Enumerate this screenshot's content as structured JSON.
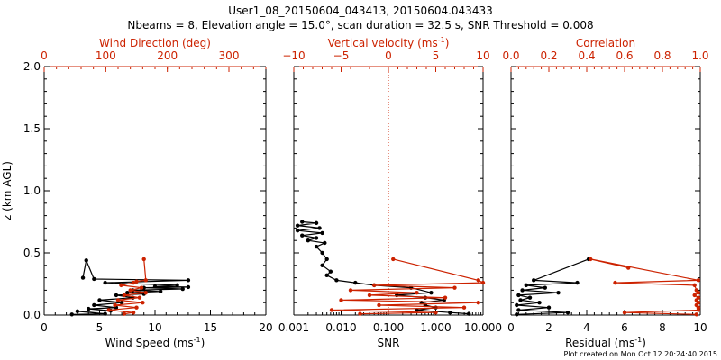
{
  "header": {
    "title": "User1_08_20150604_043413, 20150604.043433",
    "subtitle": "Nbeams = 8, Elevation angle = 15.0°, scan duration = 32.5 s, SNR Threshold = 0.008"
  },
  "footer": "Plot created on Mon Oct 12 20:24:40 2015",
  "colors": {
    "black": "#000000",
    "red": "#cc2200"
  },
  "chart_data": [
    {
      "id": "panel1",
      "type": "scatter",
      "ylabel": "z (km AGL)",
      "ylim": [
        0,
        2.0
      ],
      "yticks": [
        0.0,
        0.5,
        1.0,
        1.5,
        2.0
      ],
      "ytick_labels": [
        "0.0",
        "0.5",
        "1.0",
        "1.5",
        "2.0"
      ],
      "bottom_axis": {
        "label": "Wind Speed",
        "unit": "(ms",
        "unit_exp": "-1",
        "unit_close": ")",
        "scale": "linear",
        "lim": [
          0,
          20
        ],
        "ticks": [
          0,
          5,
          10,
          15,
          20
        ],
        "tick_labels": [
          "0",
          "5",
          "10",
          "15",
          "20"
        ]
      },
      "top_axis": {
        "label": "Wind Direction (deg)",
        "unit": "",
        "unit_exp": "",
        "unit_close": "",
        "scale": "linear",
        "lim": [
          0,
          360
        ],
        "ticks": [
          0,
          100,
          200,
          300
        ],
        "tick_labels": [
          "0",
          "100",
          "200",
          "300"
        ]
      },
      "series": [
        {
          "name": "Wind Speed",
          "axis": "bottom",
          "color": "#000000",
          "marker": "dot",
          "points": [
            [
              2.5,
              0.005
            ],
            [
              5.5,
              0.01
            ],
            [
              3.0,
              0.03
            ],
            [
              6.0,
              0.035
            ],
            [
              4.0,
              0.05
            ],
            [
              6.5,
              0.06
            ],
            [
              4.5,
              0.08
            ],
            [
              7.0,
              0.1
            ],
            [
              5.0,
              0.12
            ],
            [
              8.0,
              0.14
            ],
            [
              6.5,
              0.16
            ],
            [
              9.0,
              0.17
            ],
            [
              7.5,
              0.18
            ],
            [
              10.5,
              0.19
            ],
            [
              8.0,
              0.2
            ],
            [
              12.5,
              0.21
            ],
            [
              9.0,
              0.22
            ],
            [
              13.0,
              0.225
            ],
            [
              10.0,
              0.23
            ],
            [
              12.0,
              0.24
            ],
            [
              5.5,
              0.26
            ],
            [
              13.0,
              0.28
            ],
            [
              4.5,
              0.29
            ],
            [
              3.8,
              0.44
            ],
            [
              3.5,
              0.3
            ]
          ]
        },
        {
          "name": "Wind Direction",
          "axis": "top",
          "color": "#cc2200",
          "marker": "dot",
          "points": [
            [
              130,
              0.01
            ],
            [
              145,
              0.02
            ],
            [
              105,
              0.04
            ],
            [
              150,
              0.06
            ],
            [
              115,
              0.08
            ],
            [
              160,
              0.1
            ],
            [
              120,
              0.12
            ],
            [
              155,
              0.14
            ],
            [
              130,
              0.16
            ],
            [
              165,
              0.18
            ],
            [
              140,
              0.2
            ],
            [
              158,
              0.22
            ],
            [
              125,
              0.24
            ],
            [
              145,
              0.26
            ],
            [
              150,
              0.27
            ],
            [
              165,
              0.28
            ],
            [
              162,
              0.45
            ]
          ]
        }
      ]
    },
    {
      "id": "panel2",
      "type": "scatter",
      "ylim": [
        0,
        2.0
      ],
      "bottom_axis": {
        "label": "SNR",
        "unit": "",
        "unit_exp": "",
        "unit_close": "",
        "scale": "log",
        "lim": [
          0.001,
          10
        ],
        "ticks": [
          0.001,
          0.01,
          0.1,
          1,
          10
        ],
        "tick_labels": [
          "0.001",
          "0.010",
          "0.100",
          "1.000",
          "10.000"
        ]
      },
      "top_axis": {
        "label": "Vertical velocity (ms",
        "unit": "",
        "unit_exp": "-1",
        "unit_close": ")",
        "scale": "linear",
        "lim": [
          -10,
          10
        ],
        "ticks": [
          -10,
          -5,
          0,
          5,
          10
        ],
        "tick_labels": [
          "−10",
          "−5",
          "0",
          "5",
          "10"
        ]
      },
      "reference_line": {
        "axis": "top",
        "value": 0,
        "style": "dotted"
      },
      "series": [
        {
          "name": "SNR",
          "axis": "bottom",
          "color": "#000000",
          "marker": "dot",
          "points": [
            [
              0.0015,
              0.75
            ],
            [
              0.003,
              0.74
            ],
            [
              0.0012,
              0.72
            ],
            [
              0.0035,
              0.7
            ],
            [
              0.0012,
              0.68
            ],
            [
              0.004,
              0.66
            ],
            [
              0.0015,
              0.64
            ],
            [
              0.003,
              0.62
            ],
            [
              0.002,
              0.6
            ],
            [
              0.0045,
              0.58
            ],
            [
              0.003,
              0.55
            ],
            [
              0.004,
              0.5
            ],
            [
              0.005,
              0.45
            ],
            [
              0.004,
              0.4
            ],
            [
              0.006,
              0.35
            ],
            [
              0.005,
              0.32
            ],
            [
              0.008,
              0.28
            ],
            [
              0.02,
              0.26
            ],
            [
              0.05,
              0.24
            ],
            [
              0.3,
              0.22
            ],
            [
              0.8,
              0.18
            ],
            [
              0.15,
              0.16
            ],
            [
              0.6,
              0.14
            ],
            [
              1.5,
              0.12
            ],
            [
              0.5,
              0.1
            ],
            [
              0.6,
              0.08
            ],
            [
              1.0,
              0.06
            ],
            [
              0.4,
              0.04
            ],
            [
              2.0,
              0.02
            ],
            [
              5.0,
              0.01
            ]
          ]
        },
        {
          "name": "Vertical velocity",
          "axis": "top",
          "color": "#cc2200",
          "marker": "dot",
          "points": [
            [
              -3,
              0.01
            ],
            [
              5,
              0.02
            ],
            [
              -6,
              0.04
            ],
            [
              8,
              0.06
            ],
            [
              -1,
              0.08
            ],
            [
              9.5,
              0.1
            ],
            [
              -5,
              0.12
            ],
            [
              6,
              0.14
            ],
            [
              -2,
              0.16
            ],
            [
              3,
              0.18
            ],
            [
              -4,
              0.2
            ],
            [
              7,
              0.22
            ],
            [
              -1.5,
              0.24
            ],
            [
              10,
              0.26
            ],
            [
              9.5,
              0.28
            ],
            [
              0.5,
              0.45
            ]
          ]
        }
      ]
    },
    {
      "id": "panel3",
      "type": "scatter",
      "ylim": [
        0,
        2.0
      ],
      "bottom_axis": {
        "label": "Residual",
        "unit": "(ms",
        "unit_exp": "-1",
        "unit_close": ")",
        "scale": "linear",
        "lim": [
          0,
          10
        ],
        "ticks": [
          0,
          2,
          4,
          6,
          8,
          10
        ],
        "tick_labels": [
          "0",
          "2",
          "4",
          "6",
          "8",
          "10"
        ]
      },
      "top_axis": {
        "label": "Correlation",
        "unit": "",
        "unit_exp": "",
        "unit_close": "",
        "scale": "linear",
        "lim": [
          0,
          1.0
        ],
        "ticks": [
          0,
          0.2,
          0.4,
          0.6,
          0.8,
          1.0
        ],
        "tick_labels": [
          "0.0",
          "0.2",
          "0.4",
          "0.6",
          "0.8",
          "1.0"
        ]
      },
      "series": [
        {
          "name": "Residual",
          "axis": "bottom",
          "color": "#000000",
          "marker": "dot",
          "points": [
            [
              0.3,
              0.005
            ],
            [
              3.0,
              0.02
            ],
            [
              0.4,
              0.04
            ],
            [
              2.0,
              0.06
            ],
            [
              0.3,
              0.08
            ],
            [
              1.5,
              0.1
            ],
            [
              0.5,
              0.12
            ],
            [
              1.0,
              0.14
            ],
            [
              0.4,
              0.16
            ],
            [
              2.5,
              0.18
            ],
            [
              0.6,
              0.2
            ],
            [
              1.8,
              0.22
            ],
            [
              0.8,
              0.24
            ],
            [
              3.5,
              0.26
            ],
            [
              1.2,
              0.28
            ],
            [
              4.1,
              0.45
            ]
          ]
        },
        {
          "name": "Correlation",
          "axis": "top",
          "color": "#cc2200",
          "marker": "dot",
          "points": [
            [
              0.98,
              0.005
            ],
            [
              0.6,
              0.02
            ],
            [
              0.99,
              0.04
            ],
            [
              0.99,
              0.06
            ],
            [
              0.98,
              0.08
            ],
            [
              0.99,
              0.1
            ],
            [
              0.98,
              0.12
            ],
            [
              0.99,
              0.14
            ],
            [
              0.97,
              0.16
            ],
            [
              0.99,
              0.18
            ],
            [
              0.98,
              0.2
            ],
            [
              0.97,
              0.24
            ],
            [
              0.55,
              0.26
            ],
            [
              0.99,
              0.28
            ],
            [
              0.42,
              0.45
            ],
            [
              0.62,
              0.38
            ]
          ]
        }
      ]
    }
  ]
}
